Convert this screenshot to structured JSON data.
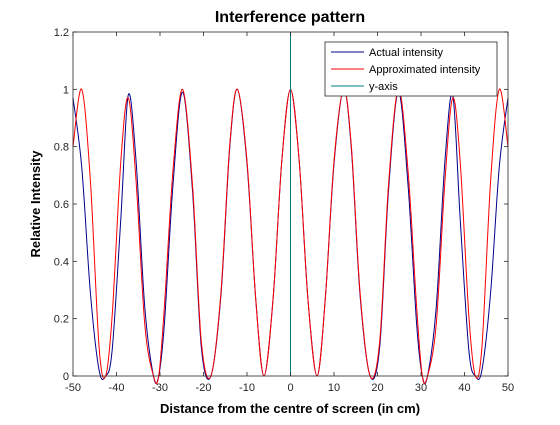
{
  "chart_data": {
    "type": "line",
    "title": "Interference pattern",
    "xlabel": "Distance from the centre of screen (in cm)",
    "ylabel": "Relative Intensity",
    "xlim": [
      -50,
      50
    ],
    "ylim": [
      0,
      1.2
    ],
    "xticks": [
      -50,
      -40,
      -30,
      -20,
      -10,
      0,
      10,
      20,
      30,
      40,
      50
    ],
    "yticks": [
      0,
      0.2,
      0.4,
      0.6,
      0.8,
      1,
      1.2
    ],
    "xtick_labels": [
      "-50",
      "-40",
      "-30",
      "-20",
      "-10",
      "0",
      "10",
      "20",
      "30",
      "40",
      "50"
    ],
    "ytick_labels": [
      "0",
      "0.2",
      "0.4",
      "0.6",
      "0.8",
      "1",
      "1.2"
    ],
    "grid": false,
    "legend_position": "top-right",
    "series": [
      {
        "name": "Actual intensity",
        "color": "#00008b",
        "x": [
          -50,
          -48,
          -46,
          -44,
          -42.5,
          -41,
          -39,
          -37.3,
          -35.5,
          -33.5,
          -31.5,
          -30.3,
          -29,
          -27,
          -24.8,
          -22.5,
          -20.5,
          -18.3,
          -16,
          -14,
          -12.2,
          -10,
          -8,
          -6.1,
          -4,
          -2,
          0,
          2,
          4,
          6.1,
          8,
          10,
          12.2,
          14,
          16,
          18.3,
          20.5,
          22.5,
          24.8,
          27,
          29,
          30.3,
          31.5,
          33.5,
          35.5,
          37.3,
          39,
          41,
          42.5,
          44,
          46,
          48,
          50
        ],
        "y": [
          0.97,
          0.73,
          0.29,
          0.02,
          0.0,
          0.09,
          0.55,
          0.98,
          0.75,
          0.24,
          0.0,
          0.0,
          0.18,
          0.67,
          0.99,
          0.64,
          0.1,
          0.0,
          0.28,
          0.79,
          1.0,
          0.74,
          0.27,
          0.0,
          0.27,
          0.75,
          1.0,
          0.75,
          0.27,
          0.0,
          0.27,
          0.74,
          1.0,
          0.79,
          0.28,
          0.0,
          0.1,
          0.64,
          0.99,
          0.67,
          0.18,
          0.0,
          0.0,
          0.24,
          0.75,
          0.98,
          0.55,
          0.09,
          0.0,
          0.02,
          0.29,
          0.73,
          0.97
        ]
      },
      {
        "name": "Approximated intensity",
        "color": "#ff0000",
        "x": [
          -50,
          -48,
          -46,
          -44,
          -42.5,
          -41,
          -39,
          -37.3,
          -35.5,
          -33.5,
          -31.5,
          -30.3,
          -29,
          -27,
          -24.8,
          -22.5,
          -20.5,
          -18.3,
          -16,
          -14,
          -12.2,
          -10,
          -8,
          -6.1,
          -4,
          -2,
          0,
          2,
          4,
          6.1,
          8,
          10,
          12.2,
          14,
          16,
          18.3,
          20.5,
          22.5,
          24.8,
          27,
          29,
          30.3,
          31.5,
          33.5,
          35.5,
          37.3,
          39,
          41,
          42.5,
          44,
          46,
          48,
          50
        ],
        "y": [
          0.8,
          1.0,
          0.68,
          0.1,
          0.0,
          0.21,
          0.75,
          0.97,
          0.68,
          0.18,
          0.0,
          0.0,
          0.24,
          0.72,
          1.0,
          0.66,
          0.12,
          0.0,
          0.29,
          0.8,
          1.0,
          0.75,
          0.27,
          0.0,
          0.27,
          0.75,
          1.0,
          0.75,
          0.27,
          0.0,
          0.27,
          0.75,
          1.0,
          0.8,
          0.29,
          0.0,
          0.12,
          0.66,
          1.0,
          0.72,
          0.24,
          0.0,
          0.0,
          0.18,
          0.68,
          0.97,
          0.75,
          0.21,
          0.0,
          0.1,
          0.68,
          1.0,
          0.8
        ]
      },
      {
        "name": "y-axis",
        "color": "#008080",
        "x": [
          0,
          0
        ],
        "y": [
          0,
          1.2
        ]
      }
    ]
  }
}
